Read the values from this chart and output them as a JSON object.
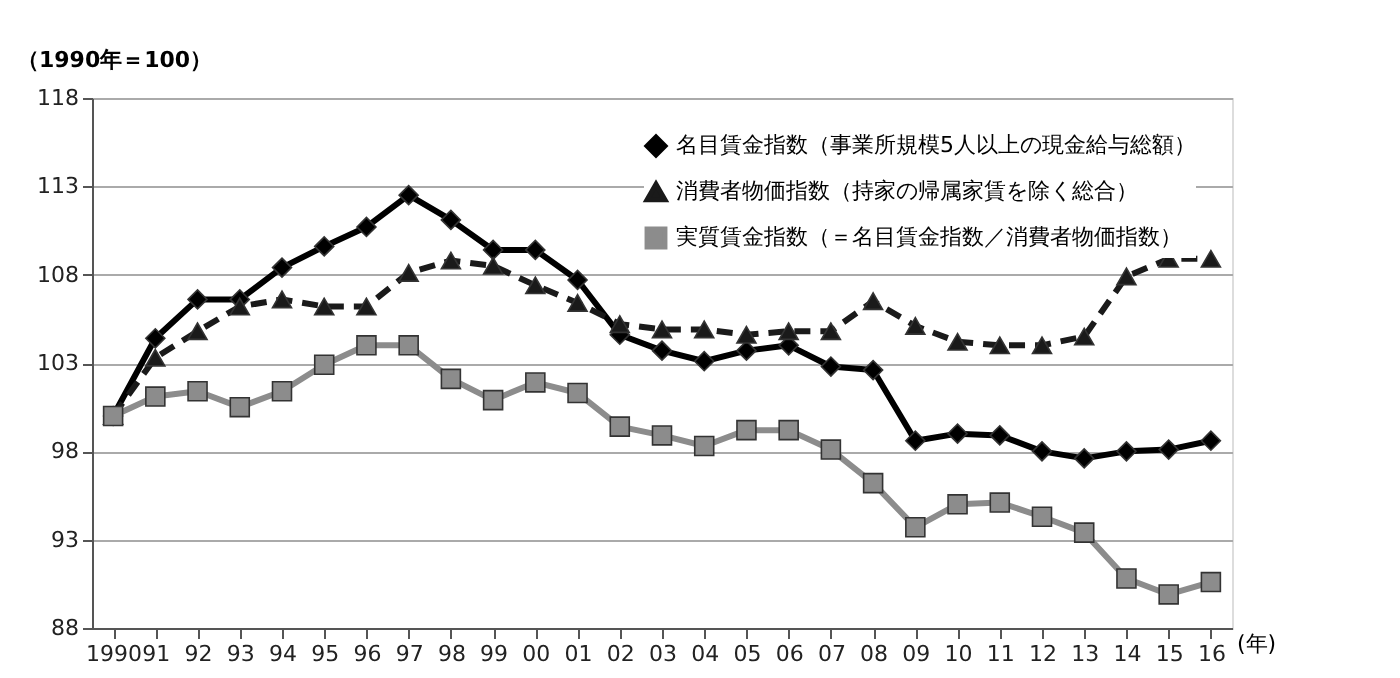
{
  "chart_data": {
    "type": "line",
    "ylabel": "（1990年＝100）",
    "xlabel": "(年)",
    "categories": [
      "1990",
      "91",
      "92",
      "93",
      "94",
      "95",
      "96",
      "97",
      "98",
      "99",
      "00",
      "01",
      "02",
      "03",
      "04",
      "05",
      "06",
      "07",
      "08",
      "09",
      "10",
      "11",
      "12",
      "13",
      "14",
      "15",
      "16"
    ],
    "ylim": [
      88,
      118
    ],
    "yticks": [
      88,
      93,
      98,
      103,
      108,
      113,
      118
    ],
    "grid": "y",
    "legend": "top right",
    "series": [
      {
        "name": "名目賃金指数（事業所規模5人以上の現金給与総額）",
        "color": "#000000",
        "marker": "diamond",
        "line_style": "solid",
        "values": [
          100,
          104.4,
          106.6,
          106.6,
          108.4,
          109.6,
          110.7,
          112.5,
          111.1,
          109.4,
          109.4,
          107.7,
          104.6,
          103.7,
          103.1,
          103.7,
          104.0,
          102.8,
          102.6,
          98.6,
          99.0,
          98.9,
          98.0,
          97.6,
          98.0,
          98.1,
          98.6
        ]
      },
      {
        "name": "消費者物価指数（持家の帰属家賃を除く総合）",
        "color": "#1a1a1a",
        "marker": "triangle",
        "line_style": "dashed",
        "values": [
          100,
          103.3,
          104.8,
          106.2,
          106.6,
          106.2,
          106.2,
          108.1,
          108.8,
          108.5,
          107.4,
          106.4,
          105.2,
          104.9,
          104.9,
          104.6,
          104.8,
          104.8,
          106.5,
          105.1,
          104.2,
          104.0,
          104.0,
          104.5,
          107.9,
          108.9,
          108.9
        ]
      },
      {
        "name": "実質賃金指数（＝名目賃金指数／消費者物価指数）",
        "color": "#8c8c8c",
        "marker": "square",
        "line_style": "solid",
        "values": [
          100,
          101.1,
          101.4,
          100.5,
          101.4,
          102.9,
          104.0,
          104.0,
          102.1,
          100.9,
          101.9,
          101.3,
          99.4,
          98.9,
          98.3,
          99.2,
          99.2,
          98.1,
          96.2,
          93.7,
          95.0,
          95.1,
          94.3,
          93.4,
          90.8,
          89.9,
          90.6
        ]
      }
    ]
  }
}
